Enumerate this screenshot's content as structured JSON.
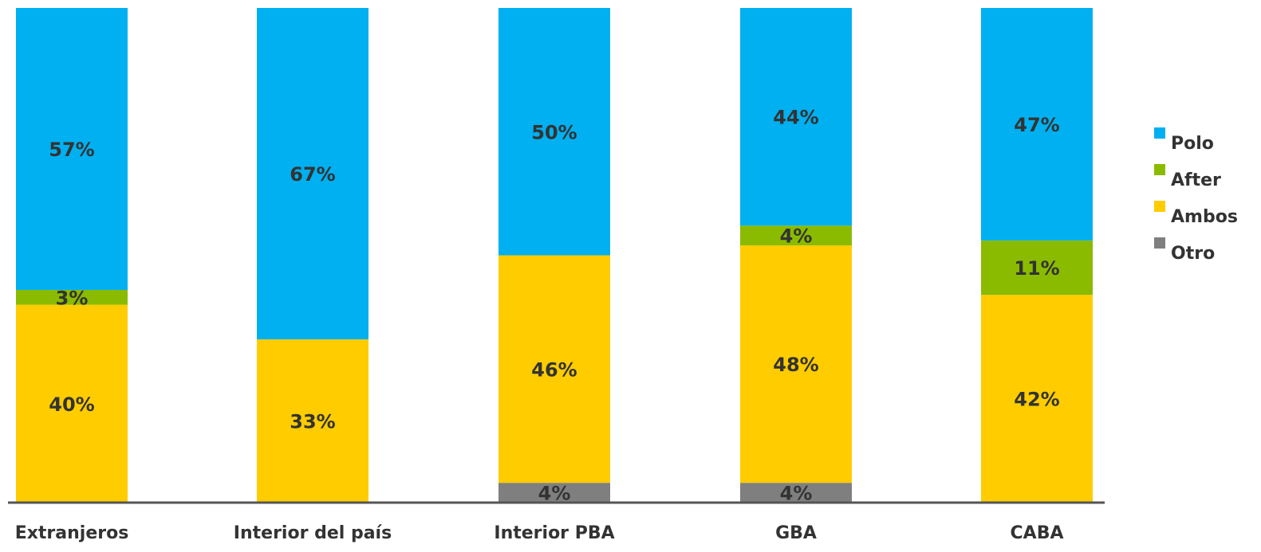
{
  "chart_data": {
    "type": "bar",
    "stacked": true,
    "orientation": "vertical",
    "categories": [
      "Extranjeros",
      "Interior del país",
      "Interior PBA",
      "GBA",
      "CABA"
    ],
    "series": [
      {
        "name": "Otro",
        "color": "#7f7f7f",
        "values": [
          0,
          0,
          4,
          4,
          0
        ],
        "labels": [
          "",
          "",
          "4%",
          "4%",
          ""
        ]
      },
      {
        "name": "Ambos",
        "color": "#ffcc00",
        "values": [
          40,
          33,
          46,
          48,
          42
        ],
        "labels": [
          "40%",
          "33%",
          "46%",
          "48%",
          "42%"
        ]
      },
      {
        "name": "After",
        "color": "#8abb00",
        "values": [
          3,
          0,
          0,
          4,
          11
        ],
        "labels": [
          "3%",
          "",
          "",
          "4%",
          "11%"
        ]
      },
      {
        "name": "Polo",
        "color": "#00b0f0",
        "values": [
          57,
          67,
          50,
          44,
          47
        ],
        "labels": [
          "57%",
          "67%",
          "50%",
          "44%",
          "47%"
        ]
      }
    ],
    "legend": {
      "position": "right",
      "order": [
        "Polo",
        "After",
        "Ambos",
        "Otro"
      ]
    },
    "ylim": [
      0,
      100
    ],
    "grid": false
  }
}
